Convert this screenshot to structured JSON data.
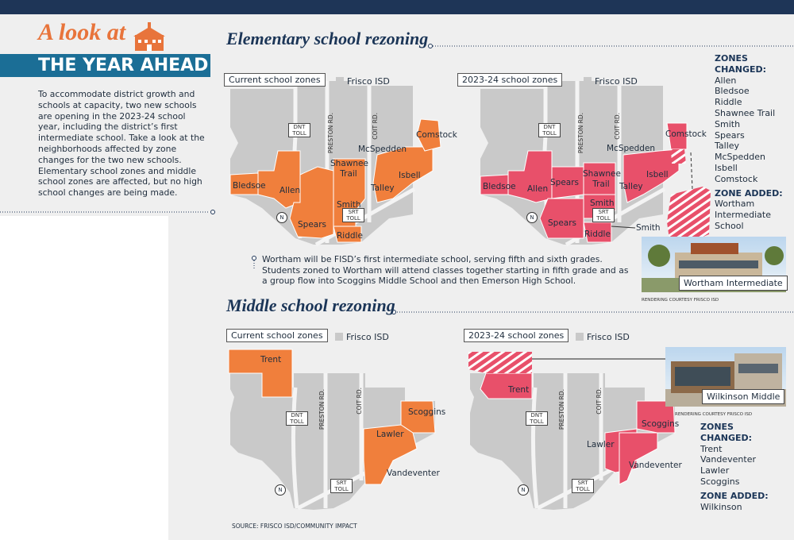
{
  "banner": {
    "script_title": "A look at",
    "title": "THE YEAR AHEAD"
  },
  "intro": "To accommodate district growth and schools at capacity, two new schools are opening in the 2023-24 school year, including the district’s first intermediate school. Take a look at the neighborhoods affected by zone changes for the two new schools. Elementary school zones and middle school zones are affected, but no high school changes are being made.",
  "elementary": {
    "heading": "Elementary school rezoning",
    "current": {
      "panel": "Current school zones",
      "legend": "Frisco ISD",
      "roads": [
        "DNT TOLL",
        "PRESTON RD.",
        "COIT RD.",
        "SRT TOLL"
      ],
      "north": "N",
      "schools": [
        "Bledsoe",
        "Allen",
        "Spears",
        "Shawnee Trail",
        "Smith",
        "Riddle",
        "McSpedden",
        "Talley",
        "Isbell",
        "Comstock"
      ]
    },
    "new": {
      "panel": "2023-24 school zones",
      "legend": "Frisco ISD",
      "roads": [
        "DNT TOLL",
        "PRESTON RD.",
        "COIT RD.",
        "SRT TOLL"
      ],
      "north": "N",
      "schools": [
        "Bledsoe",
        "Allen",
        "Spears",
        "Shawnee Trail",
        "Talley",
        "Isbell",
        "McSpedden",
        "Comstock",
        "Smith",
        "Spears",
        "Riddle",
        "Smith"
      ]
    },
    "zones_changed": {
      "heading": "ZONES CHANGED:",
      "items": [
        "Allen",
        "Bledsoe",
        "Riddle",
        "Shawnee Trail",
        "Smith",
        "Spears",
        "Talley",
        "McSpedden",
        "Isbell",
        "Comstock"
      ]
    },
    "zone_added": {
      "heading": "ZONE ADDED:",
      "items": [
        "Wortham Intermediate School"
      ]
    },
    "note": "Wortham will be FISD’s first intermediate school, serving fifth and sixth grades. Students zoned to Wortham will attend classes together starting in fifth grade and as a group flow into Scoggins Middle School and then Emerson High School.",
    "photo": {
      "caption": "Wortham Intermediate",
      "credit": "RENDERING COURTESY FRISCO ISD"
    }
  },
  "middle": {
    "heading": "Middle school rezoning",
    "current": {
      "panel": "Current school zones",
      "legend": "Frisco ISD",
      "roads": [
        "DNT TOLL",
        "PRESTON RD.",
        "COIT RD.",
        "SRT TOLL"
      ],
      "north": "N",
      "schools": [
        "Trent",
        "Scoggins",
        "Lawler",
        "Vandeventer"
      ]
    },
    "new": {
      "panel": "2023-24 school zones",
      "legend": "Frisco ISD",
      "roads": [
        "DNT TOLL",
        "PRESTON RD.",
        "COIT RD.",
        "SRT TOLL"
      ],
      "north": "N",
      "schools": [
        "Trent",
        "Scoggins",
        "Lawler",
        "Vandeventer"
      ]
    },
    "zones_changed": {
      "heading": "ZONES CHANGED:",
      "items": [
        "Trent",
        "Vandeventer",
        "Lawler",
        "Scoggins"
      ]
    },
    "zone_added": {
      "heading": "ZONE ADDED:",
      "items": [
        "Wilkinson"
      ]
    },
    "photo": {
      "caption": "Wilkinson Middle",
      "credit": "RENDERING COURTESY FRISCO ISD"
    }
  },
  "source": "SOURCE: FRISCO ISD/COMMUNITY IMPACT"
}
